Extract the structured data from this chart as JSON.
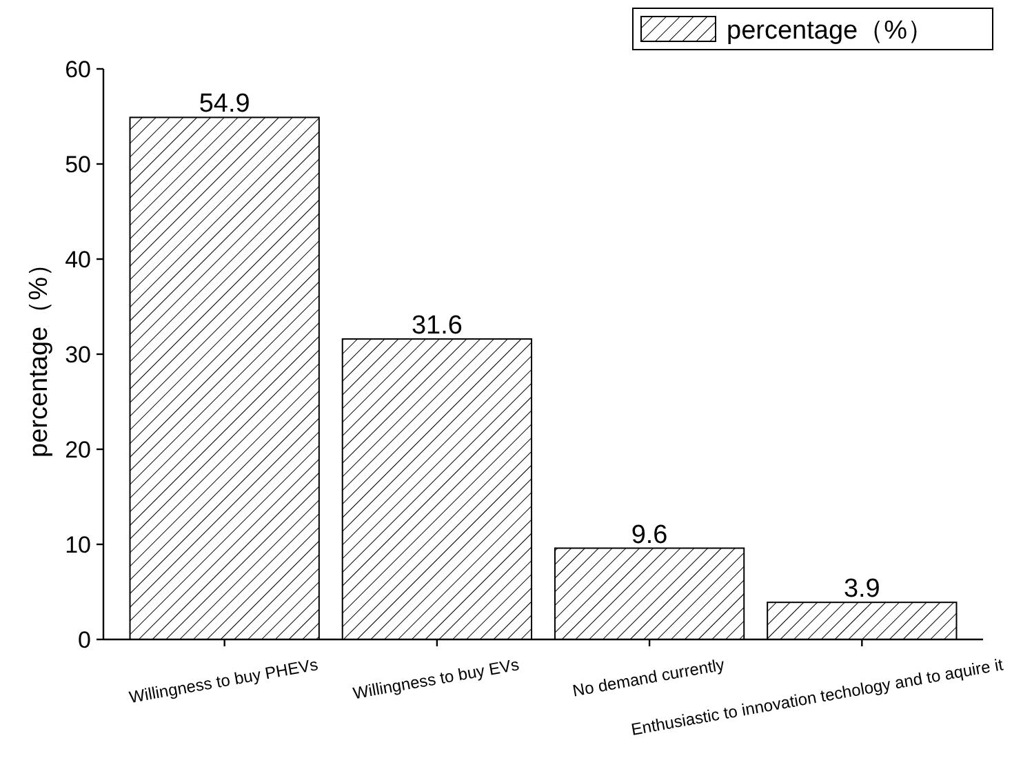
{
  "chart_data": {
    "type": "bar",
    "ylabel": "percentage（%）",
    "categories": [
      "Willingness to buy PHEVs",
      "Willingness to buy EVs",
      "No demand currently",
      "Enthusiastic to innovation techology and to aquire it"
    ],
    "series": [
      {
        "name": "percentage（%）",
        "color": "#000000",
        "values": [
          54.9,
          31.6,
          9.6,
          3.9
        ]
      }
    ],
    "ylim": [
      0,
      60
    ],
    "yticks": [
      0,
      10,
      20,
      30,
      40,
      50,
      60
    ],
    "data_labels": true,
    "legend": "top right",
    "grid": false
  }
}
